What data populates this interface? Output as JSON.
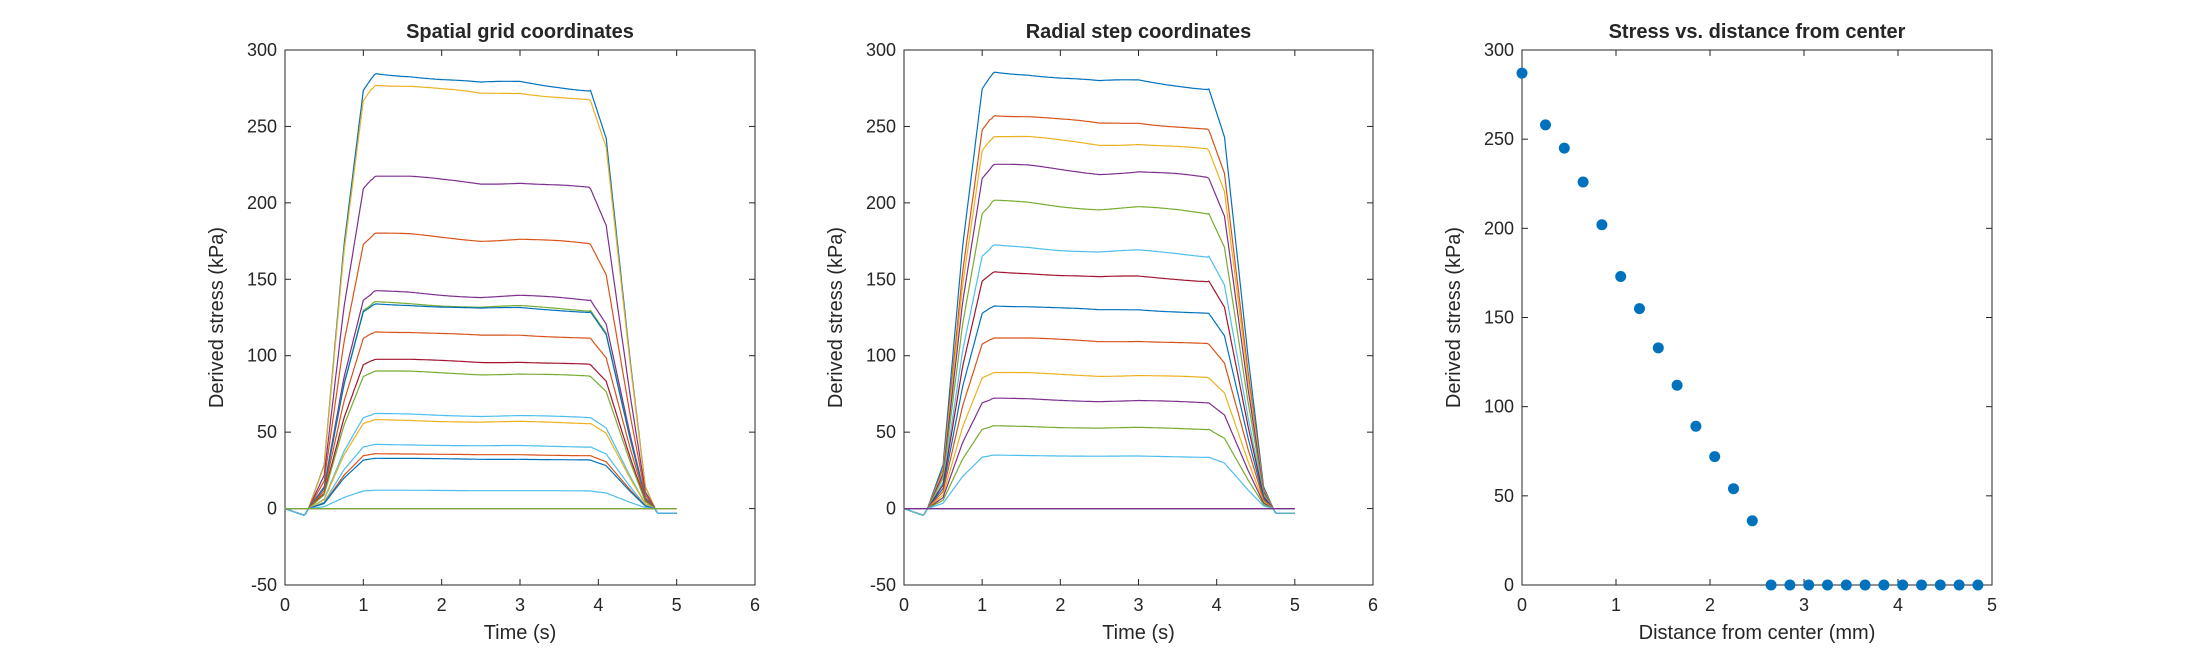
{
  "chart_data": [
    {
      "type": "line",
      "title": "Spatial grid coordinates",
      "xlabel": "Time (s)",
      "ylabel": "Derived stress (kPa)",
      "xlim": [
        0,
        6
      ],
      "ylim": [
        -50,
        300
      ],
      "xticks": [
        0,
        1,
        2,
        3,
        4,
        5,
        6
      ],
      "yticks": [
        -50,
        0,
        50,
        100,
        150,
        200,
        250,
        300
      ],
      "grid": false,
      "legend": "none",
      "time_profile": {
        "t": [
          0,
          0.25,
          0.3,
          0.5,
          0.75,
          1.0,
          1.15,
          1.6,
          2.0,
          2.5,
          3.0,
          3.5,
          3.9,
          4.1,
          4.4,
          4.6,
          4.75,
          5.0
        ],
        "f": [
          0,
          -0.015,
          0,
          0.1,
          0.6,
          0.96,
          1.0,
          0.995,
          0.985,
          0.975,
          0.98,
          0.97,
          0.96,
          0.85,
          0.35,
          0.05,
          -0.01,
          -0.01
        ]
      },
      "series": [
        {
          "plateau": 285,
          "color": "#0072BD"
        },
        {
          "plateau": 278,
          "color": "#EDB120"
        },
        {
          "plateau": 218,
          "color": "#7E2F8E"
        },
        {
          "plateau": 180,
          "color": "#D95319"
        },
        {
          "plateau": 142,
          "color": "#7E2F8E"
        },
        {
          "plateau": 135,
          "color": "#77AC30"
        },
        {
          "plateau": 134,
          "color": "#0072BD"
        },
        {
          "plateau": 116,
          "color": "#D95319"
        },
        {
          "plateau": 98,
          "color": "#A2142F"
        },
        {
          "plateau": 90,
          "color": "#77AC30"
        },
        {
          "plateau": 62,
          "color": "#4DBEEE"
        },
        {
          "plateau": 58,
          "color": "#EDB120"
        },
        {
          "plateau": 42,
          "color": "#4DBEEE"
        },
        {
          "plateau": 36,
          "color": "#D95319"
        },
        {
          "plateau": 33,
          "color": "#0072BD"
        },
        {
          "plateau": 12,
          "color": "#4DBEEE"
        },
        {
          "plateau": 0,
          "color": "#A2142F"
        },
        {
          "plateau": 0,
          "color": "#77AC30"
        }
      ]
    },
    {
      "type": "line",
      "title": "Radial step coordinates",
      "xlabel": "Time (s)",
      "ylabel": "Derived stress (kPa)",
      "xlim": [
        0,
        6
      ],
      "ylim": [
        -50,
        300
      ],
      "xticks": [
        0,
        1,
        2,
        3,
        4,
        5,
        6
      ],
      "yticks": [
        -50,
        0,
        50,
        100,
        150,
        200,
        250,
        300
      ],
      "grid": false,
      "legend": "none",
      "time_profile": {
        "t": [
          0,
          0.25,
          0.3,
          0.5,
          0.75,
          1.0,
          1.15,
          1.6,
          2.0,
          2.5,
          3.0,
          3.5,
          3.9,
          4.1,
          4.4,
          4.6,
          4.75,
          5.0
        ],
        "f": [
          0,
          -0.015,
          0,
          0.1,
          0.6,
          0.96,
          1.0,
          0.995,
          0.985,
          0.975,
          0.98,
          0.97,
          0.96,
          0.85,
          0.35,
          0.05,
          -0.01,
          -0.01
        ]
      },
      "series": [
        {
          "plateau": 286,
          "color": "#0072BD"
        },
        {
          "plateau": 258,
          "color": "#D95319"
        },
        {
          "plateau": 244,
          "color": "#EDB120"
        },
        {
          "plateau": 225,
          "color": "#7E2F8E"
        },
        {
          "plateau": 201,
          "color": "#77AC30"
        },
        {
          "plateau": 172,
          "color": "#4DBEEE"
        },
        {
          "plateau": 155,
          "color": "#A2142F"
        },
        {
          "plateau": 133,
          "color": "#0072BD"
        },
        {
          "plateau": 112,
          "color": "#D95319"
        },
        {
          "plateau": 89,
          "color": "#EDB120"
        },
        {
          "plateau": 72,
          "color": "#7E2F8E"
        },
        {
          "plateau": 54,
          "color": "#77AC30"
        },
        {
          "plateau": 35,
          "color": "#4DBEEE"
        },
        {
          "plateau": 0,
          "color": "#A2142F"
        },
        {
          "plateau": 0,
          "color": "#0072BD"
        },
        {
          "plateau": 0,
          "color": "#7E2F8E"
        }
      ]
    },
    {
      "type": "scatter",
      "title": "Stress vs. distance from center",
      "xlabel": "Distance from center (mm)",
      "ylabel": "Derived stress (kPa)",
      "xlim": [
        0,
        5
      ],
      "ylim": [
        0,
        300
      ],
      "xticks": [
        0,
        1,
        2,
        3,
        4,
        5
      ],
      "yticks": [
        0,
        50,
        100,
        150,
        200,
        250,
        300
      ],
      "grid": false,
      "legend": "none",
      "marker_color": "#0072BD",
      "x": [
        0,
        0.25,
        0.45,
        0.65,
        0.85,
        1.05,
        1.25,
        1.45,
        1.65,
        1.85,
        2.05,
        2.25,
        2.45,
        2.65,
        2.85,
        3.05,
        3.25,
        3.45,
        3.65,
        3.85,
        4.05,
        4.25,
        4.45,
        4.65,
        4.85
      ],
      "y": [
        287,
        258,
        245,
        226,
        202,
        173,
        155,
        133,
        112,
        89,
        72,
        54,
        36,
        0,
        0,
        0,
        0,
        0,
        0,
        0,
        0,
        0,
        0,
        0,
        0
      ]
    }
  ]
}
